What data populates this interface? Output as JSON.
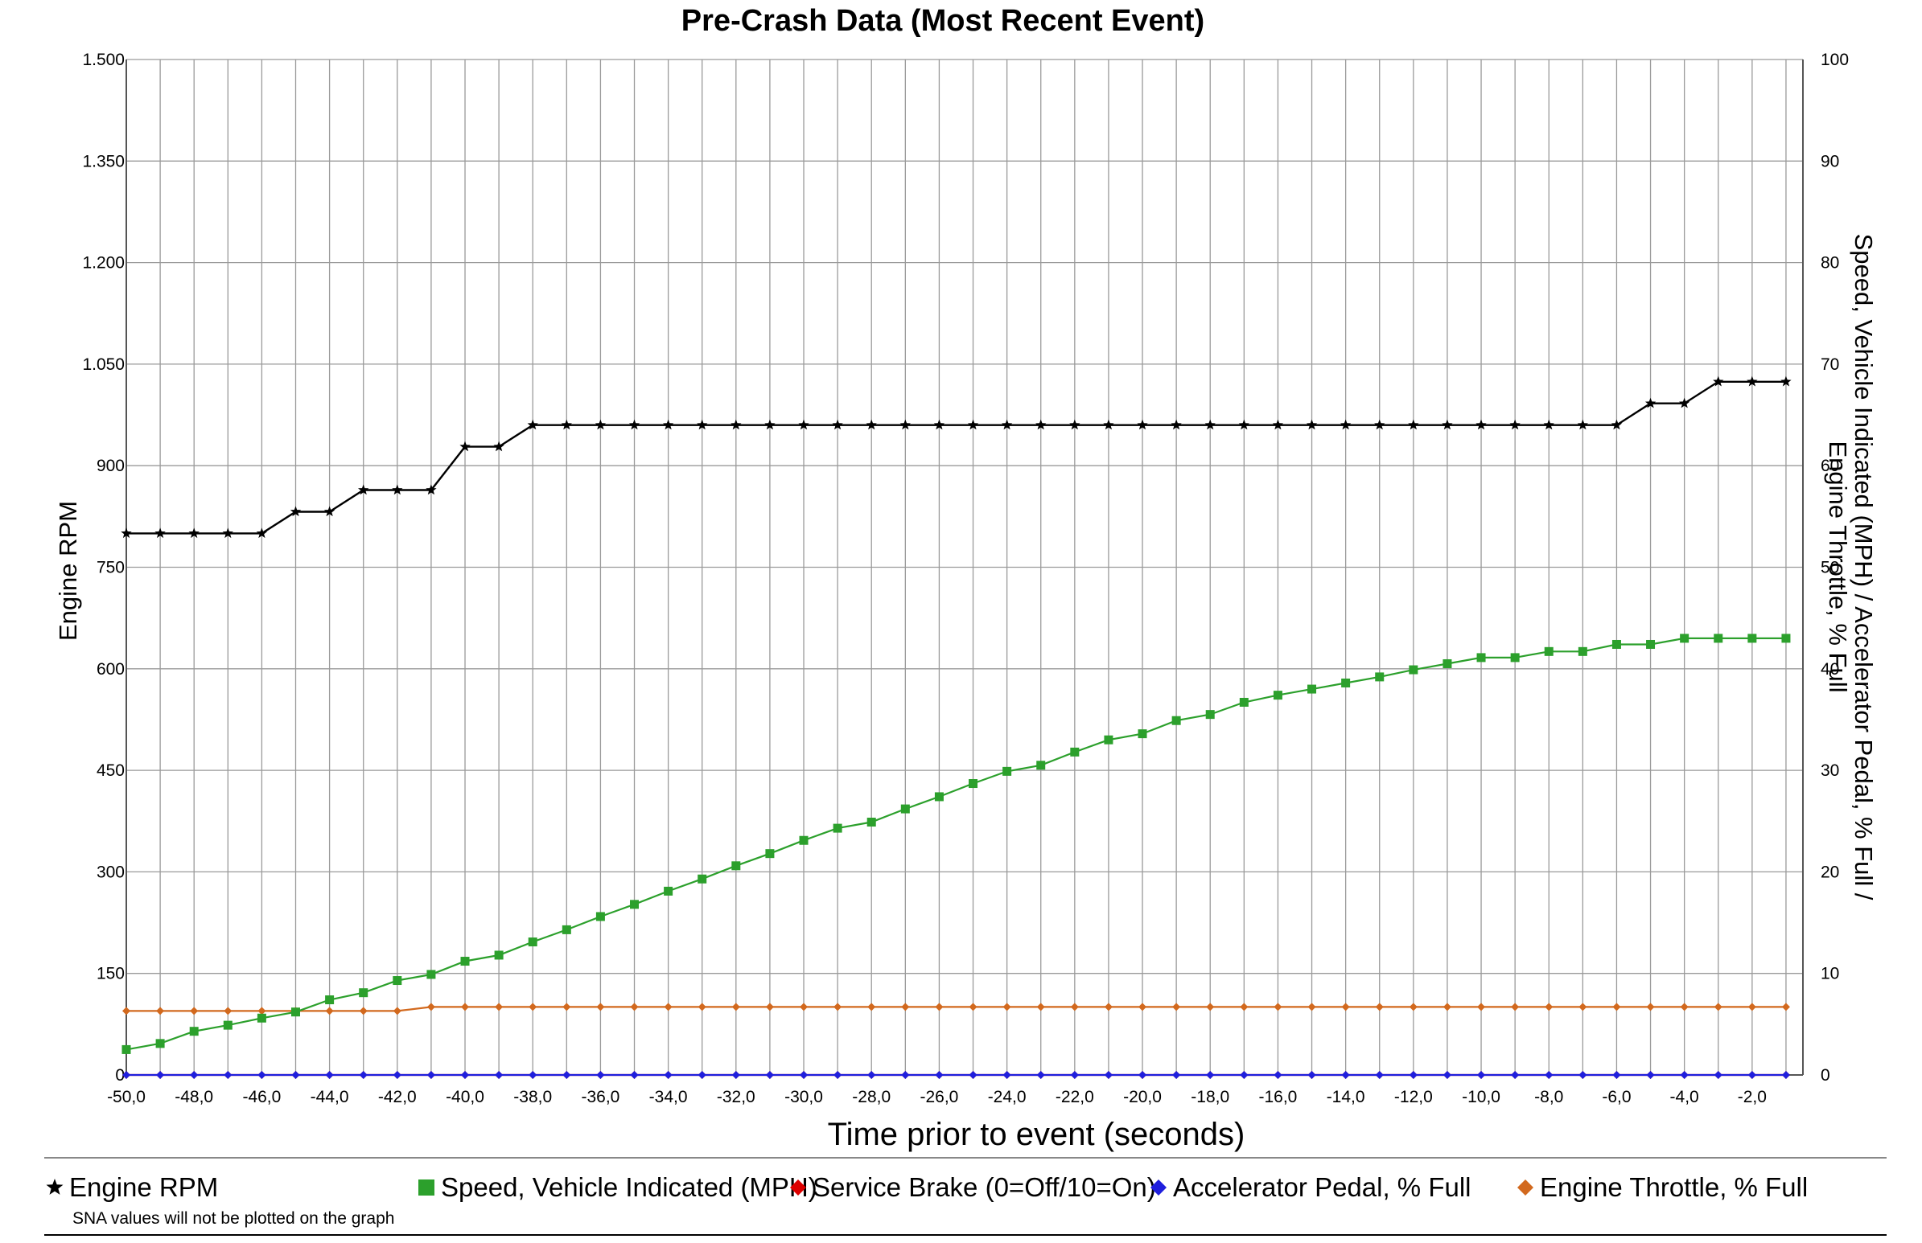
{
  "chart_data": {
    "type": "line",
    "title": "Pre-Crash Data (Most Recent Event)",
    "xlabel": "Time prior to event (seconds)",
    "ylabel_left": "Engine RPM",
    "ylabel_right_line1": "Speed, Vehicle Indicated (MPH) / Accelerator Pedal, % Full /",
    "ylabel_right_line2": "Engine Throttle, % Full",
    "xlim": [
      -50,
      -0.5
    ],
    "ylim_left": [
      0,
      1500
    ],
    "ylim_right": [
      0,
      100
    ],
    "x_ticks": [
      -50,
      -48,
      -46,
      -44,
      -42,
      -40,
      -38,
      -36,
      -34,
      -32,
      -30,
      -28,
      -26,
      -24,
      -22,
      -20,
      -18,
      -16,
      -14,
      -12,
      -10,
      -8,
      -6,
      -4,
      -2
    ],
    "x_tick_labels": [
      "-50,0",
      "-48,0",
      "-46,0",
      "-44,0",
      "-42,0",
      "-40,0",
      "-38,0",
      "-36,0",
      "-34,0",
      "-32,0",
      "-30,0",
      "-28,0",
      "-26,0",
      "-24,0",
      "-22,0",
      "-20,0",
      "-18,0",
      "-16,0",
      "-14,0",
      "-12,0",
      "-10,0",
      "-8,0",
      "-6,0",
      "-4,0",
      "-2,0"
    ],
    "y_left_ticks": [
      0,
      150,
      300,
      450,
      600,
      750,
      900,
      1050,
      1200,
      1350,
      1500
    ],
    "y_left_tick_labels": [
      "0",
      "150",
      "300",
      "450",
      "600",
      "750",
      "900",
      "1.050",
      "1.200",
      "1.350",
      "1.500"
    ],
    "y_right_ticks": [
      0,
      10,
      20,
      30,
      40,
      50,
      60,
      70,
      80,
      90,
      100
    ],
    "y_right_tick_labels": [
      "0",
      "10",
      "20",
      "30",
      "40",
      "50",
      "60",
      "70",
      "80",
      "90",
      "100"
    ],
    "grid": true,
    "series": [
      {
        "name": "Engine RPM",
        "axis": "left",
        "color": "#000000",
        "marker": "star",
        "x": [
          -50.0,
          -49.0,
          -48.0,
          -47.0,
          -46.0,
          -45.0,
          -44.0,
          -43.0,
          -42.0,
          -41.0,
          -40.0,
          -39.0,
          -38.0,
          -37.0,
          -36.0,
          -35.0,
          -34.0,
          -33.0,
          -32.0,
          -31.0,
          -30.0,
          -29.0,
          -28.0,
          -27.0,
          -26.0,
          -25.0,
          -24.0,
          -23.0,
          -22.0,
          -21.0,
          -20.0,
          -19.0,
          -18.0,
          -17.0,
          -16.0,
          -15.0,
          -14.0,
          -13.0,
          -12.0,
          -11.0,
          -10.0,
          -9.0,
          -8.0,
          -7.0,
          -6.0,
          -5.0,
          -4.0,
          -3.0,
          -2.0,
          -1.0
        ],
        "values": [
          800,
          800,
          800,
          800,
          800,
          832,
          832,
          864,
          864,
          864,
          928,
          928,
          960,
          960,
          960,
          960,
          960,
          960,
          960,
          960,
          960,
          960,
          960,
          960,
          960,
          960,
          960,
          960,
          960,
          960,
          960,
          960,
          960,
          960,
          960,
          960,
          960,
          960,
          960,
          960,
          960,
          960,
          960,
          960,
          960,
          992,
          992,
          1024,
          1024,
          1024
        ]
      },
      {
        "name": "Speed, Vehicle Indicated (MPH)",
        "axis": "right",
        "color": "#2ca02c",
        "marker": "square",
        "x": [
          -50.0,
          -49.0,
          -48.0,
          -47.0,
          -46.0,
          -45.0,
          -44.0,
          -43.0,
          -42.0,
          -41.0,
          -40.0,
          -39.0,
          -38.0,
          -37.0,
          -36.0,
          -35.0,
          -34.0,
          -33.0,
          -32.0,
          -31.0,
          -30.0,
          -29.0,
          -28.0,
          -27.0,
          -26.0,
          -25.0,
          -24.0,
          -23.0,
          -22.0,
          -21.0,
          -20.0,
          -19.0,
          -18.0,
          -17.0,
          -16.0,
          -15.0,
          -14.0,
          -13.0,
          -12.0,
          -11.0,
          -10.0,
          -9.0,
          -8.0,
          -7.0,
          -6.0,
          -5.0,
          -4.0,
          -3.0,
          -2.0,
          -1.0
        ],
        "values": [
          2.5,
          3.1,
          4.3,
          4.9,
          5.6,
          6.2,
          7.4,
          8.1,
          9.3,
          9.9,
          11.2,
          11.8,
          13.1,
          14.3,
          15.6,
          16.8,
          18.1,
          19.3,
          20.6,
          21.8,
          23.1,
          24.3,
          24.9,
          26.2,
          27.4,
          28.7,
          29.9,
          30.5,
          31.8,
          33.0,
          33.6,
          34.9,
          35.5,
          36.7,
          37.4,
          38.0,
          38.6,
          39.2,
          39.9,
          40.5,
          41.1,
          41.1,
          41.7,
          41.7,
          42.4,
          42.4,
          43.0,
          43.0,
          43.0,
          43.0
        ]
      },
      {
        "name": "Service Brake (0=Off/10=On)",
        "axis": "right",
        "color": "#dd0000",
        "marker": "diamond",
        "x": [
          -50.0,
          -49.0,
          -48.0,
          -47.0,
          -46.0,
          -45.0,
          -44.0,
          -43.0,
          -42.0,
          -41.0,
          -40.0,
          -39.0,
          -38.0,
          -37.0,
          -36.0,
          -35.0,
          -34.0,
          -33.0,
          -32.0,
          -31.0,
          -30.0,
          -29.0,
          -28.0,
          -27.0,
          -26.0,
          -25.0,
          -24.0,
          -23.0,
          -22.0,
          -21.0,
          -20.0,
          -19.0,
          -18.0,
          -17.0,
          -16.0,
          -15.0,
          -14.0,
          -13.0,
          -12.0,
          -11.0,
          -10.0,
          -9.0,
          -8.0,
          -7.0,
          -6.0,
          -5.0,
          -4.0,
          -3.0,
          -2.0,
          -1.0
        ],
        "values": [
          0,
          0,
          0,
          0,
          0,
          0,
          0,
          0,
          0,
          0,
          0,
          0,
          0,
          0,
          0,
          0,
          0,
          0,
          0,
          0,
          0,
          0,
          0,
          0,
          0,
          0,
          0,
          0,
          0,
          0,
          0,
          0,
          0,
          0,
          0,
          0,
          0,
          0,
          0,
          0,
          0,
          0,
          0,
          0,
          0,
          0,
          0,
          0,
          0,
          0
        ]
      },
      {
        "name": "Accelerator Pedal, % Full",
        "axis": "right",
        "color": "#1f1fdd",
        "marker": "diamond",
        "x": [
          -50.0,
          -49.0,
          -48.0,
          -47.0,
          -46.0,
          -45.0,
          -44.0,
          -43.0,
          -42.0,
          -41.0,
          -40.0,
          -39.0,
          -38.0,
          -37.0,
          -36.0,
          -35.0,
          -34.0,
          -33.0,
          -32.0,
          -31.0,
          -30.0,
          -29.0,
          -28.0,
          -27.0,
          -26.0,
          -25.0,
          -24.0,
          -23.0,
          -22.0,
          -21.0,
          -20.0,
          -19.0,
          -18.0,
          -17.0,
          -16.0,
          -15.0,
          -14.0,
          -13.0,
          -12.0,
          -11.0,
          -10.0,
          -9.0,
          -8.0,
          -7.0,
          -6.0,
          -5.0,
          -4.0,
          -3.0,
          -2.0,
          -1.0
        ],
        "values": [
          0,
          0,
          0,
          0,
          0,
          0,
          0,
          0,
          0,
          0,
          0,
          0,
          0,
          0,
          0,
          0,
          0,
          0,
          0,
          0,
          0,
          0,
          0,
          0,
          0,
          0,
          0,
          0,
          0,
          0,
          0,
          0,
          0,
          0,
          0,
          0,
          0,
          0,
          0,
          0,
          0,
          0,
          0,
          0,
          0,
          0,
          0,
          0,
          0,
          0
        ]
      },
      {
        "name": "Engine Throttle, % Full",
        "axis": "right",
        "color": "#d2691e",
        "marker": "diamond",
        "x": [
          -50.0,
          -49.0,
          -48.0,
          -47.0,
          -46.0,
          -45.0,
          -44.0,
          -43.0,
          -42.0,
          -41.0,
          -40.0,
          -39.0,
          -38.0,
          -37.0,
          -36.0,
          -35.0,
          -34.0,
          -33.0,
          -32.0,
          -31.0,
          -30.0,
          -29.0,
          -28.0,
          -27.0,
          -26.0,
          -25.0,
          -24.0,
          -23.0,
          -22.0,
          -21.0,
          -20.0,
          -19.0,
          -18.0,
          -17.0,
          -16.0,
          -15.0,
          -14.0,
          -13.0,
          -12.0,
          -11.0,
          -10.0,
          -9.0,
          -8.0,
          -7.0,
          -6.0,
          -5.0,
          -4.0,
          -3.0,
          -2.0,
          -1.0
        ],
        "values": [
          6.3,
          6.3,
          6.3,
          6.3,
          6.3,
          6.3,
          6.3,
          6.3,
          6.3,
          6.7,
          6.7,
          6.7,
          6.7,
          6.7,
          6.7,
          6.7,
          6.7,
          6.7,
          6.7,
          6.7,
          6.7,
          6.7,
          6.7,
          6.7,
          6.7,
          6.7,
          6.7,
          6.7,
          6.7,
          6.7,
          6.7,
          6.7,
          6.7,
          6.7,
          6.7,
          6.7,
          6.7,
          6.7,
          6.7,
          6.7,
          6.7,
          6.7,
          6.7,
          6.7,
          6.7,
          6.7,
          6.7,
          6.7,
          6.7,
          6.7
        ]
      }
    ],
    "legend": {
      "placement": "bottom",
      "entries": [
        {
          "label": "Engine RPM",
          "color": "#000000",
          "marker": "star"
        },
        {
          "label": "Speed, Vehicle Indicated (MPH)",
          "color": "#2ca02c",
          "marker": "square"
        },
        {
          "label": "Service Brake (0=Off/10=On)",
          "color": "#dd0000",
          "marker": "diamond"
        },
        {
          "label": "Accelerator Pedal, % Full",
          "color": "#1f1fdd",
          "marker": "diamond"
        },
        {
          "label": "Engine Throttle, % Full",
          "color": "#d2691e",
          "marker": "diamond"
        }
      ],
      "note": "SNA values will not be plotted on the graph"
    }
  }
}
